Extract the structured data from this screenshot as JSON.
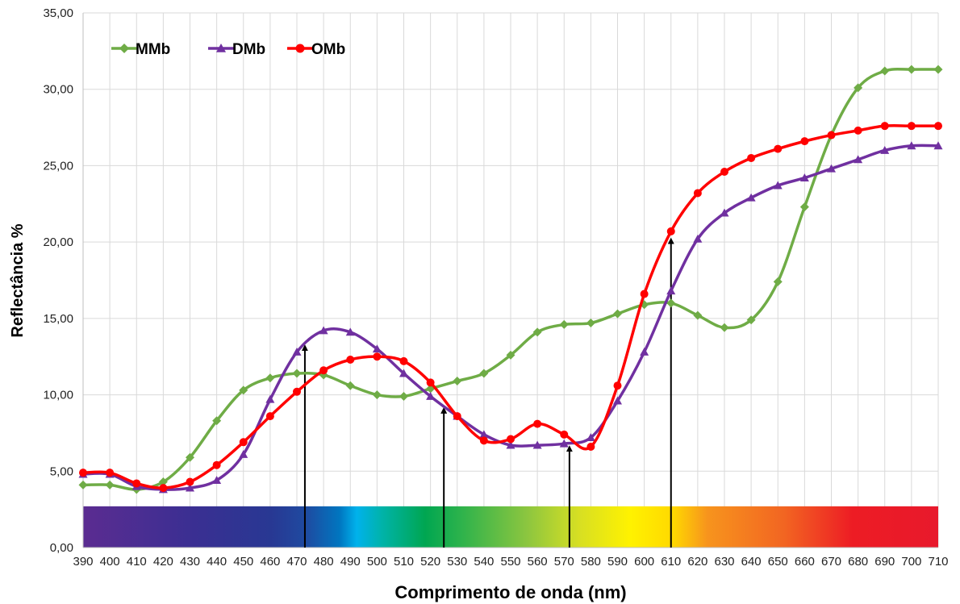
{
  "chart_data": {
    "type": "line",
    "title": "",
    "xlabel": "Comprimento de onda (nm)",
    "ylabel": "Reflectância %",
    "x": [
      390,
      400,
      410,
      420,
      430,
      440,
      450,
      460,
      470,
      480,
      490,
      500,
      510,
      520,
      530,
      540,
      550,
      560,
      570,
      580,
      590,
      600,
      610,
      620,
      630,
      640,
      650,
      660,
      670,
      680,
      690,
      700,
      710
    ],
    "x_tick_labels": [
      "390",
      "400",
      "410",
      "420",
      "430",
      "440",
      "450",
      "460",
      "470",
      "480",
      "490",
      "500",
      "510",
      "520",
      "530",
      "540",
      "550",
      "560",
      "570",
      "580",
      "590",
      "600",
      "610",
      "620",
      "630",
      "640",
      "650",
      "660",
      "670",
      "680",
      "690",
      "700",
      "710"
    ],
    "xlim": [
      390,
      710
    ],
    "ylim": [
      0,
      35
    ],
    "y_ticks": [
      0,
      5,
      10,
      15,
      20,
      25,
      30,
      35
    ],
    "y_tick_labels": [
      "0,00",
      "5,00",
      "10,00",
      "15,00",
      "20,00",
      "25,00",
      "30,00",
      "35,00"
    ],
    "grid": true,
    "legend_position": "top-left",
    "series": [
      {
        "name": "MMb",
        "color": "#6fac46",
        "marker": "diamond",
        "values": [
          4.1,
          4.1,
          3.8,
          4.3,
          5.9,
          8.3,
          10.3,
          11.1,
          11.4,
          11.3,
          10.6,
          10.0,
          9.9,
          10.4,
          10.9,
          11.4,
          12.6,
          14.1,
          14.6,
          14.7,
          15.3,
          15.9,
          16.0,
          15.2,
          14.4,
          14.9,
          17.4,
          22.3,
          27.0,
          30.1,
          31.2,
          31.3,
          31.3
        ]
      },
      {
        "name": "DMb",
        "color": "#7030a0",
        "marker": "triangle",
        "values": [
          4.8,
          4.8,
          4.0,
          3.8,
          3.9,
          4.4,
          6.1,
          9.7,
          12.8,
          14.2,
          14.1,
          13.0,
          11.4,
          9.9,
          8.6,
          7.4,
          6.7,
          6.7,
          6.8,
          7.2,
          9.6,
          12.8,
          16.8,
          20.2,
          21.9,
          22.9,
          23.7,
          24.2,
          24.8,
          25.4,
          26.0,
          26.3,
          26.3
        ]
      },
      {
        "name": "OMb",
        "color": "#ff0000",
        "marker": "circle",
        "values": [
          4.9,
          4.9,
          4.2,
          3.9,
          4.3,
          5.4,
          6.9,
          8.6,
          10.2,
          11.6,
          12.3,
          12.5,
          12.2,
          10.8,
          8.6,
          7.0,
          7.1,
          8.1,
          7.4,
          6.6,
          10.6,
          16.6,
          20.7,
          23.2,
          24.6,
          25.5,
          26.1,
          26.6,
          27.0,
          27.3,
          27.6,
          27.6,
          27.6
        ]
      }
    ],
    "annotations": {
      "arrows_at_nm": [
        473,
        525,
        572,
        610
      ],
      "spectrum_band_max_y": 2.7
    }
  }
}
